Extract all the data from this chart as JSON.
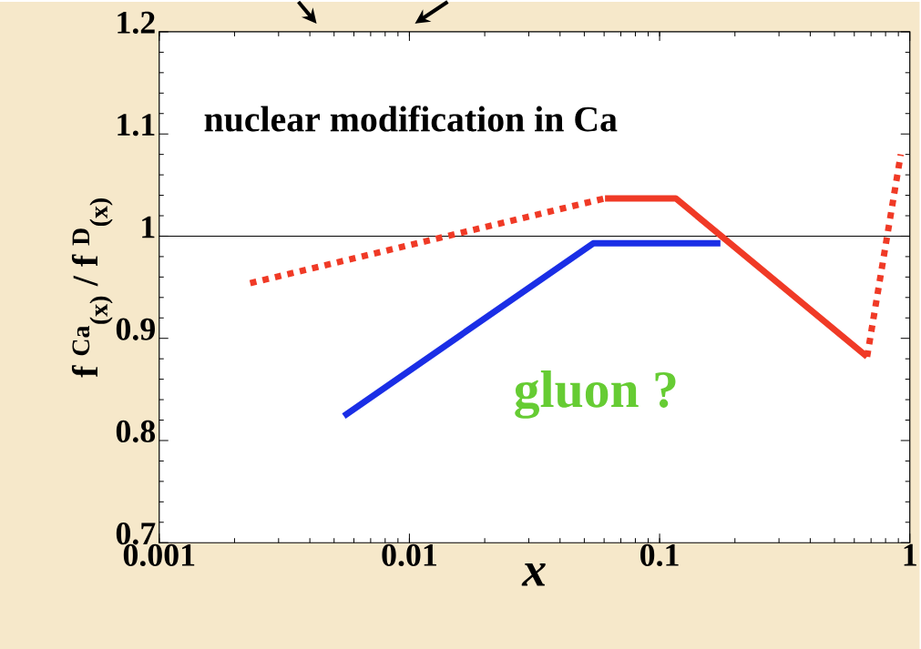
{
  "chart_data": {
    "type": "line",
    "xlabel": "*x*",
    "ylabel": "f $^{Ca}$$_{(x)}$ / f $^{D}$$_{(x)}$",
    "annotations": [
      "nuclear modification in Ca",
      "gluon ?"
    ],
    "series": [
      {
        "color": "#1a2ee6",
        "line_style": "solid",
        "x": [
          0.00547,
          0.0543,
          0.175
        ],
        "values": [
          0.824,
          0.993,
          0.993
        ]
      },
      {
        "color": "#f03a26",
        "line_style": "dotted",
        "x": [
          0.00231,
          0.0605
        ],
        "values": [
          0.954,
          1.037
        ]
      },
      {
        "color": "#f03a26",
        "line_style": "solid",
        "x": [
          0.0605,
          0.116,
          0.675
        ],
        "values": [
          1.037,
          1.037,
          0.882
        ]
      },
      {
        "color": "#f03a26",
        "line_style": "dotted",
        "x": [
          0.675,
          0.92
        ],
        "values": [
          0.882,
          1.08
        ]
      }
    ],
    "log": "x",
    "xlim": [
      0.001,
      1
    ],
    "ylim": [
      0.7,
      1.2
    ],
    "xticks": [
      0.001,
      0.01,
      0.1,
      1
    ],
    "yticks": [
      0.7,
      0.8,
      0.9,
      1,
      1.1,
      1.2
    ],
    "ref_lines": [
      {
        "axis": "y",
        "value": 1,
        "color": "#000000"
      }
    ],
    "marker": "none",
    "grid": false
  }
}
